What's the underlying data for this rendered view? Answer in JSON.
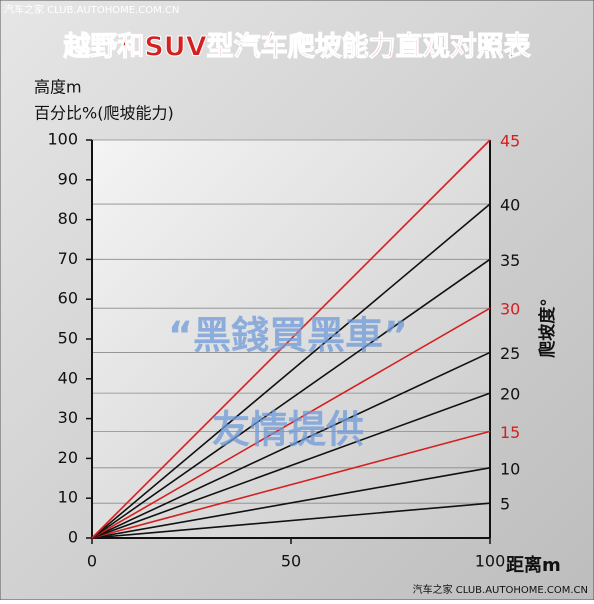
{
  "chart_data": {
    "type": "line",
    "title": "越野和SUV型汽车爬坡能力直观对照表",
    "y_label_1": "高度m",
    "y_label_2": "百分比%(爬坡能力)",
    "x_label": "距离m",
    "y2_label": "爬坡度°",
    "source_top": "汽车之家  CLUB.AUTOHOME.COM.CN",
    "source_bottom": "汽车之家  CLUB.AUTOHOME.COM.CN",
    "annotations": [
      "“黑錢買黑車”",
      "友情提供"
    ],
    "x": [
      0,
      100
    ],
    "xlim": [
      0,
      100
    ],
    "xticks": [
      0,
      50,
      100
    ],
    "ylim": [
      0,
      100
    ],
    "yticks": [
      0,
      10,
      20,
      30,
      40,
      50,
      60,
      70,
      80,
      90,
      100
    ],
    "series": [
      {
        "name": "5",
        "color": "#111111",
        "values": [
          0,
          8.75
        ]
      },
      {
        "name": "10",
        "color": "#111111",
        "values": [
          0,
          17.63
        ]
      },
      {
        "name": "15",
        "color": "#d42020",
        "values": [
          0,
          26.79
        ]
      },
      {
        "name": "20",
        "color": "#111111",
        "values": [
          0,
          36.4
        ]
      },
      {
        "name": "25",
        "color": "#111111",
        "values": [
          0,
          46.63
        ]
      },
      {
        "name": "30",
        "color": "#d42020",
        "values": [
          0,
          57.74
        ]
      },
      {
        "name": "35",
        "color": "#111111",
        "values": [
          0,
          70.02
        ]
      },
      {
        "name": "40",
        "color": "#111111",
        "values": [
          0,
          83.91
        ]
      },
      {
        "name": "45",
        "color": "#d42020",
        "values": [
          0,
          100
        ]
      }
    ]
  }
}
